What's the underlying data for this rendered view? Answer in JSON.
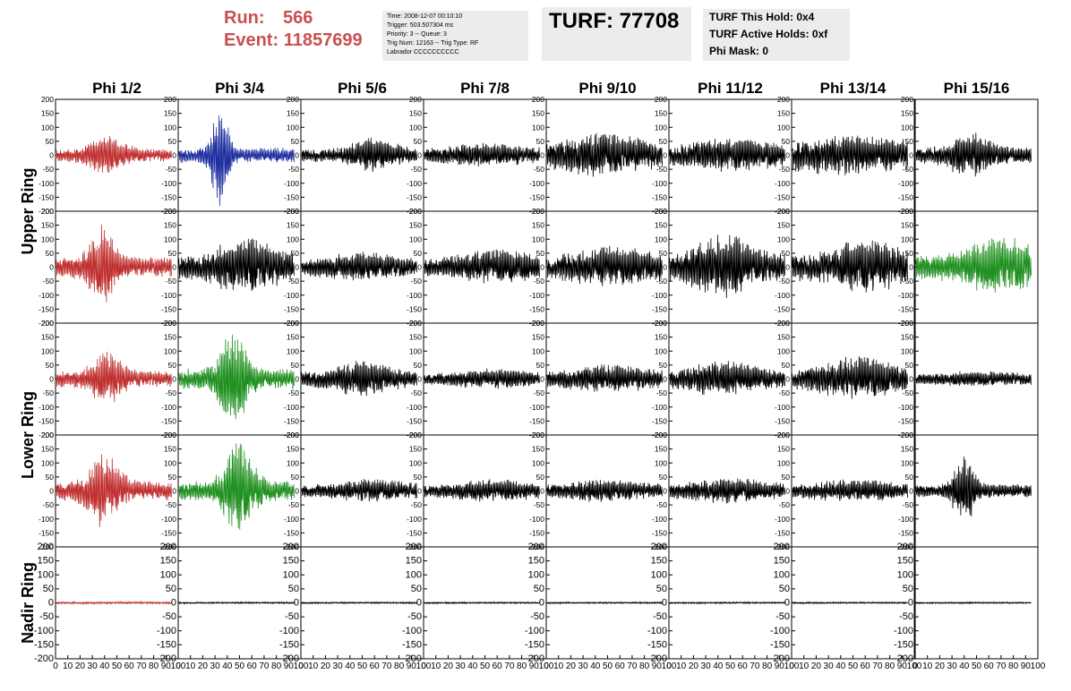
{
  "header": {
    "run_label": "Run:",
    "run_value": "566",
    "event_label": "Event:",
    "event_value": "11857699",
    "info_lines": [
      "Time: 2008-12-07 00:10:10",
      "Trigger: 503.507304 ms",
      "Priority: 3 -- Queue: 3",
      "Trig Num: 12163 -- Trig Type: RF",
      "Labrador CCCCCCCCCC"
    ],
    "turf_text": "TURF: 77708",
    "turf_hold": "TURF This Hold: 0x4",
    "turf_active": "TURF Active Holds: 0xf",
    "phi_mask": "Phi Mask: 0"
  },
  "chart_data": {
    "type": "line",
    "columns": [
      "Phi 1/2",
      "Phi 3/4",
      "Phi 5/6",
      "Phi 7/8",
      "Phi 9/10",
      "Phi 11/12",
      "Phi 13/14",
      "Phi 15/16"
    ],
    "row_labels": [
      {
        "text": "Upper Ring",
        "rows": [
          0,
          1
        ]
      },
      {
        "text": "Lower Ring",
        "rows": [
          2,
          3
        ]
      },
      {
        "text": "Nadir Ring",
        "rows": [
          4
        ]
      }
    ],
    "ylim": [
      -200,
      200
    ],
    "xlim": [
      0,
      100
    ],
    "y_ticks": [
      -200,
      -150,
      -100,
      -50,
      0,
      50,
      100,
      150,
      200
    ],
    "x_ticks": [
      0,
      10,
      20,
      30,
      40,
      50,
      60,
      70,
      80,
      90,
      100
    ],
    "x_tick_labels": [
      "0",
      "10",
      "20",
      "30",
      "40",
      "50",
      "60",
      "70",
      "80",
      "90",
      "100"
    ],
    "colors": {
      "red": "#c03030",
      "blue": "#2030a0",
      "green": "#209020",
      "black": "#000000"
    },
    "panels": [
      [
        {
          "color": "red",
          "amp": 75,
          "peak": 42,
          "width": 18,
          "base": 0.3
        },
        {
          "color": "blue",
          "amp": 185,
          "peak": 34,
          "width": 8,
          "base": 0.15
        },
        {
          "color": "black",
          "amp": 70,
          "peak": 60,
          "width": 20,
          "base": 0.35
        },
        {
          "color": "black",
          "amp": 45,
          "peak": 50,
          "width": 40,
          "base": 0.5
        },
        {
          "color": "black",
          "amp": 85,
          "peak": 45,
          "width": 35,
          "base": 0.5
        },
        {
          "color": "black",
          "amp": 70,
          "peak": 50,
          "width": 35,
          "base": 0.5
        },
        {
          "color": "black",
          "amp": 75,
          "peak": 50,
          "width": 45,
          "base": 0.7
        },
        {
          "color": "black",
          "amp": 85,
          "peak": 45,
          "width": 20,
          "base": 0.35
        }
      ],
      [
        {
          "color": "red",
          "amp": 155,
          "peak": 38,
          "width": 12,
          "base": 0.25
        },
        {
          "color": "black",
          "amp": 115,
          "peak": 55,
          "width": 25,
          "base": 0.4
        },
        {
          "color": "black",
          "amp": 55,
          "peak": 50,
          "width": 35,
          "base": 0.5
        },
        {
          "color": "black",
          "amp": 65,
          "peak": 60,
          "width": 35,
          "base": 0.5
        },
        {
          "color": "black",
          "amp": 80,
          "peak": 55,
          "width": 35,
          "base": 0.5
        },
        {
          "color": "black",
          "amp": 125,
          "peak": 45,
          "width": 25,
          "base": 0.4
        },
        {
          "color": "black",
          "amp": 115,
          "peak": 60,
          "width": 25,
          "base": 0.45
        },
        {
          "color": "green",
          "amp": 115,
          "peak": 70,
          "width": 30,
          "base": 0.4
        }
      ],
      [
        {
          "color": "red",
          "amp": 100,
          "peak": 42,
          "width": 15,
          "base": 0.3
        },
        {
          "color": "green",
          "amp": 195,
          "peak": 45,
          "width": 12,
          "base": 0.2
        },
        {
          "color": "black",
          "amp": 70,
          "peak": 50,
          "width": 25,
          "base": 0.4
        },
        {
          "color": "black",
          "amp": 40,
          "peak": 60,
          "width": 35,
          "base": 0.5
        },
        {
          "color": "black",
          "amp": 55,
          "peak": 50,
          "width": 35,
          "base": 0.5
        },
        {
          "color": "black",
          "amp": 70,
          "peak": 45,
          "width": 30,
          "base": 0.45
        },
        {
          "color": "black",
          "amp": 85,
          "peak": 55,
          "width": 30,
          "base": 0.45
        },
        {
          "color": "black",
          "amp": 30,
          "peak": 50,
          "width": 40,
          "base": 0.6
        }
      ],
      [
        {
          "color": "red",
          "amp": 140,
          "peak": 40,
          "width": 15,
          "base": 0.25
        },
        {
          "color": "green",
          "amp": 180,
          "peak": 50,
          "width": 14,
          "base": 0.2
        },
        {
          "color": "black",
          "amp": 45,
          "peak": 60,
          "width": 30,
          "base": 0.5
        },
        {
          "color": "black",
          "amp": 45,
          "peak": 55,
          "width": 35,
          "base": 0.5
        },
        {
          "color": "black",
          "amp": 45,
          "peak": 50,
          "width": 35,
          "base": 0.5
        },
        {
          "color": "black",
          "amp": 50,
          "peak": 50,
          "width": 35,
          "base": 0.5
        },
        {
          "color": "black",
          "amp": 45,
          "peak": 50,
          "width": 35,
          "base": 0.5
        },
        {
          "color": "black",
          "amp": 125,
          "peak": 40,
          "width": 10,
          "base": 0.2
        }
      ],
      [
        {
          "color": "red",
          "amp": 4,
          "peak": 50,
          "width": 60,
          "base": 1
        },
        {
          "color": "black",
          "amp": 3,
          "peak": 50,
          "width": 60,
          "base": 1
        },
        {
          "color": "black",
          "amp": 3,
          "peak": 50,
          "width": 60,
          "base": 1
        },
        {
          "color": "black",
          "amp": 3,
          "peak": 50,
          "width": 60,
          "base": 1
        },
        {
          "color": "black",
          "amp": 3,
          "peak": 50,
          "width": 60,
          "base": 1
        },
        {
          "color": "black",
          "amp": 3,
          "peak": 50,
          "width": 60,
          "base": 1
        },
        {
          "color": "black",
          "amp": 3,
          "peak": 50,
          "width": 60,
          "base": 1
        },
        {
          "color": "black",
          "amp": 3,
          "peak": 50,
          "width": 60,
          "base": 1
        }
      ]
    ]
  }
}
